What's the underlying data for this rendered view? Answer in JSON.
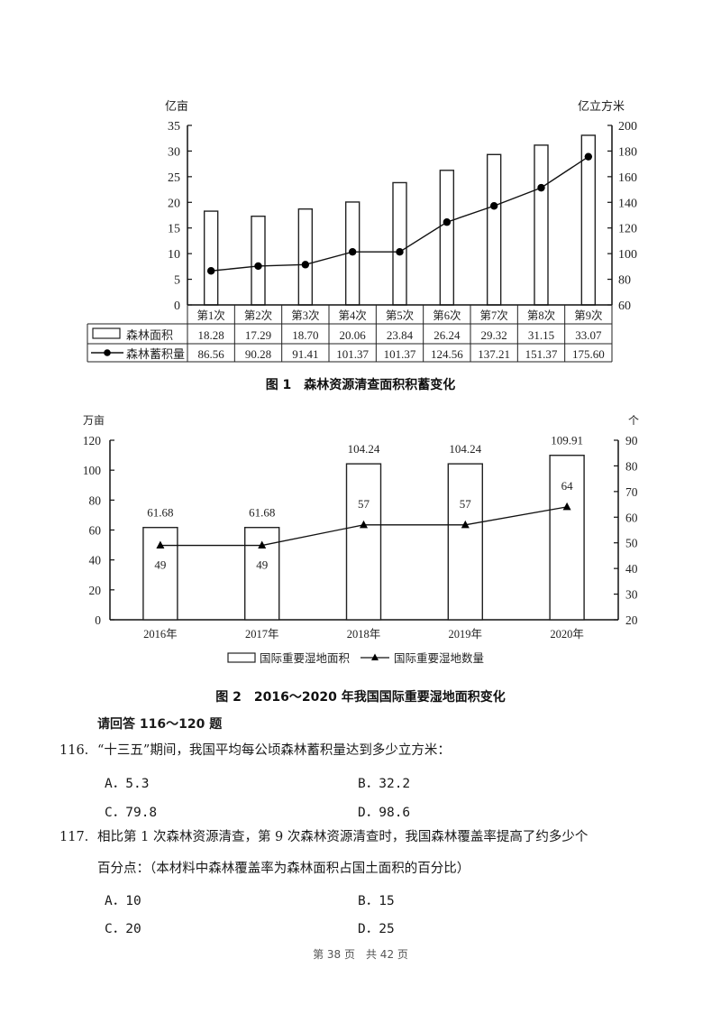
{
  "chart_data": [
    {
      "type": "bar+line",
      "title": "图 1　森林资源清查面积积蓄变化",
      "left_axis_unit": "亿亩",
      "right_axis_unit": "亿立方米",
      "left_ylim": [
        0,
        35
      ],
      "left_ticks": [
        0,
        5,
        10,
        15,
        20,
        25,
        30,
        35
      ],
      "right_ylim": [
        60,
        200
      ],
      "right_ticks": [
        60,
        80,
        100,
        120,
        140,
        160,
        180,
        200
      ],
      "categories": [
        "第1次",
        "第2次",
        "第3次",
        "第4次",
        "第5次",
        "第6次",
        "第7次",
        "第8次",
        "第9次"
      ],
      "series": [
        {
          "name": "森林面积",
          "kind": "bar",
          "axis": "left",
          "values": [
            18.28,
            17.29,
            18.7,
            20.06,
            23.84,
            26.24,
            29.32,
            31.15,
            33.07
          ],
          "labels": [
            "18.28",
            "17.29",
            "18.70",
            "20.06",
            "23.84",
            "26.24",
            "29.32",
            "31.15",
            "33.07"
          ]
        },
        {
          "name": "森林蓄积量",
          "kind": "line",
          "marker": "circle",
          "axis": "right",
          "values": [
            86.56,
            90.28,
            91.41,
            101.37,
            101.37,
            124.56,
            137.21,
            151.37,
            175.6
          ],
          "labels": [
            "86.56",
            "90.28",
            "91.41",
            "101.37",
            "101.37",
            "124.56",
            "137.21",
            "151.37",
            "175.60"
          ]
        }
      ],
      "grid": false,
      "legend_position": "data-table-below"
    },
    {
      "type": "bar+line",
      "title": "图 2　2016～2020 年我国国际重要湿地面积变化",
      "left_axis_unit": "万亩",
      "right_axis_unit": "个",
      "left_ylim": [
        0,
        120
      ],
      "left_ticks": [
        0,
        20,
        40,
        60,
        80,
        100,
        120
      ],
      "right_ylim": [
        20,
        90
      ],
      "right_ticks": [
        20,
        30,
        40,
        50,
        60,
        70,
        80,
        90
      ],
      "categories": [
        "2016年",
        "2017年",
        "2018年",
        "2019年",
        "2020年"
      ],
      "series": [
        {
          "name": "国际重要湿地面积",
          "kind": "bar",
          "axis": "left",
          "values": [
            61.68,
            61.68,
            104.24,
            104.24,
            109.91
          ],
          "labels": [
            "61.68",
            "61.68",
            "104.24",
            "104.24",
            "109.91"
          ]
        },
        {
          "name": "国际重要湿地数量",
          "kind": "line",
          "marker": "triangle",
          "axis": "right",
          "values": [
            49,
            49,
            57,
            57,
            64
          ],
          "labels": [
            "49",
            "49",
            "57",
            "57",
            "64"
          ]
        }
      ],
      "grid": false,
      "legend_position": "bottom"
    }
  ],
  "section": {
    "heading": "请回答 116～120 题"
  },
  "questions": [
    {
      "number": "116.",
      "lines": [
        "“十三五”期间，我国平均每公顷森林蓄积量达到多少立方米："
      ],
      "options": [
        {
          "key": "A",
          "text": "A．5.3"
        },
        {
          "key": "B",
          "text": "B．32.2"
        },
        {
          "key": "C",
          "text": "C．79.8"
        },
        {
          "key": "D",
          "text": "D．98.6"
        }
      ]
    },
    {
      "number": "117.",
      "lines": [
        "相比第 1 次森林资源清查，第 9 次森林资源清查时，我国森林覆盖率提高了约多少个",
        "百分点：（本材料中森林覆盖率为森林面积占国土面积的百分比）"
      ],
      "options": [
        {
          "key": "A",
          "text": "A．10"
        },
        {
          "key": "B",
          "text": "B．15"
        },
        {
          "key": "C",
          "text": "C．20"
        },
        {
          "key": "D",
          "text": "D．25"
        }
      ]
    }
  ],
  "footer": {
    "page_text": "第 38 页　共 42 页"
  }
}
